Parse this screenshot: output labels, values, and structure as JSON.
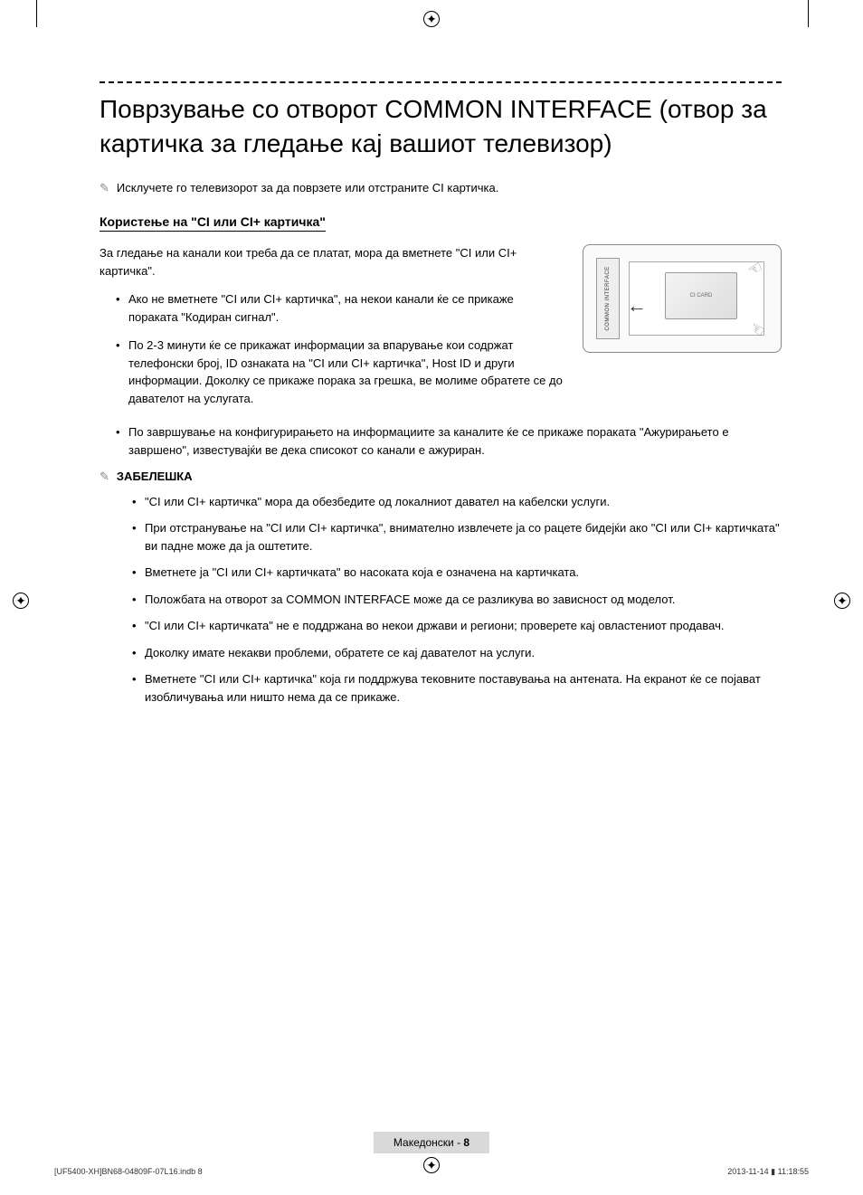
{
  "title": "Поврзување со отворот COMMON INTERFACE (отвор за картичка за гледање кај вашиот телевизор)",
  "top_note": "Исклучете го телевизорот за да поврзете или отстраните CI картичка.",
  "section_heading": "Користење на \"CI или CI+ картичка\"",
  "intro": "За гледање на канали кои треба да се платат, мора да вметнете \"CI или CI+ картичка\".",
  "bullets_beside_image": [
    "Ако не вметнете \"CI или CI+ картичка\", на некои канали ќе се прикаже пораката \"Кодиран сигнал\".",
    "По 2-3 минути ќе се прикажат информации за впарување кои содржат телефонски број, ID ознаката на \"CI или CI+ картичка\", Host ID и други информации. Доколку се прикаже порака за грешка, ве молиме обратете се до давателот на услугата."
  ],
  "bullets_below": [
    "По завршување на конфигурирањето на информациите за каналите ќе се прикаже пораката \"Ажурирањето е завршено\", известувајќи ве дека списокот со канали е ажуриран."
  ],
  "note_heading": "ЗАБЕЛЕШКА",
  "note_bullets": [
    "\"CI или CI+ картичка\" мора да обезбедите од локалниот давател на кабелски услуги.",
    "При отстранување на \"CI или CI+ картичка\", внимателно извлечете ја со рацете бидејќи ако \"CI или CI+ картичката\" ви падне може да ја оштетите.",
    "Вметнете ја \"CI или CI+ картичката\" во насоката која е означена на картичката.",
    "Положбата на отворот за COMMON INTERFACE може да се разликува во зависност од моделот.",
    "\"CI или CI+ картичката\" не е поддржана во некои држави и региони; проверете кај овластениот продавач.",
    "Доколку имате некакви проблеми, обратете се кај давателот на услуги.",
    "Вметнете \"CI или CI+ картичка\" која ги поддржува тековните поставувања на антената. На екранот ќе се појават изобличувања или ништо нема да се прикаже."
  ],
  "illustration": {
    "slot_label": "COMMON INTERFACE",
    "card_label": "CI CARD"
  },
  "footer": {
    "language": "Македонски",
    "separator": " - ",
    "page_number": "8"
  },
  "print_footer": {
    "left": "[UF5400-XH]BN68-04809F-07L16.indb   8",
    "right": "2013-11-14   ▮ 11:18:55"
  },
  "colors": {
    "text": "#000000",
    "muted": "#888888",
    "badge_bg": "#d9d9d9",
    "border": "#999999"
  }
}
